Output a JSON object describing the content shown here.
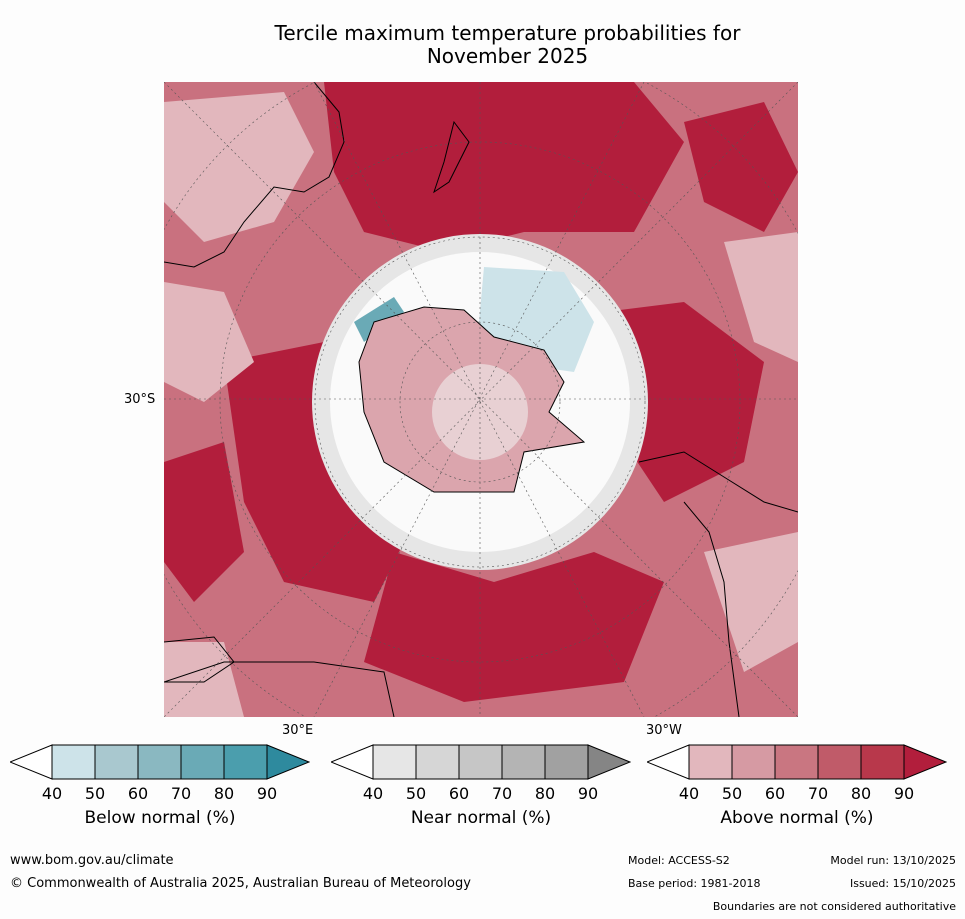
{
  "title_line1": "Tercile maximum temperature probabilities for",
  "title_line2": "November 2025",
  "map": {
    "lat_label": "30°S",
    "lon_label_east": "30°E",
    "lon_label_west": "30°W"
  },
  "legends": [
    {
      "caption": "Below normal (%)",
      "ticks": [
        "40",
        "50",
        "60",
        "70",
        "80",
        "90"
      ],
      "colors": [
        "#cde3e9",
        "#a9c8cf",
        "#8ab8c1",
        "#6aaab6",
        "#4b9ead",
        "#2e8a9e"
      ]
    },
    {
      "caption": "Near normal (%)",
      "ticks": [
        "40",
        "50",
        "60",
        "70",
        "80",
        "90"
      ],
      "colors": [
        "#e6e6e6",
        "#d6d6d6",
        "#c6c6c6",
        "#b4b4b4",
        "#a1a1a1",
        "#858585"
      ]
    },
    {
      "caption": "Above normal (%)",
      "ticks": [
        "40",
        "50",
        "60",
        "70",
        "80",
        "90"
      ],
      "colors": [
        "#e2b7bd",
        "#d69aa3",
        "#c97681",
        "#c05b69",
        "#b8384b",
        "#b21e3c"
      ]
    }
  ],
  "footer": {
    "url": "www.bom.gov.au/climate",
    "copyright": "© Commonwealth of Australia 2025, Australian Bureau of Meteorology",
    "model": "Model: ACCESS-S2",
    "base_period": "Base period: 1981-2018",
    "model_run": "Model run: 13/10/2025",
    "issued": "Issued: 15/10/2025",
    "disclaimer": "Boundaries are not considered authoritative"
  }
}
